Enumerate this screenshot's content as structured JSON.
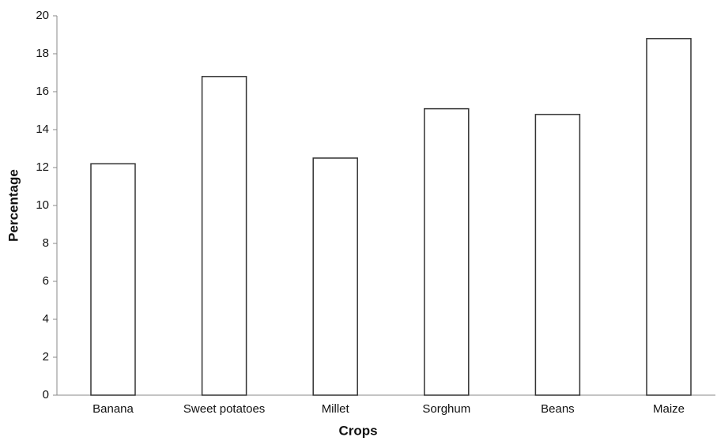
{
  "chart_data": {
    "type": "bar",
    "x_label": "Crops",
    "y_label": "Percentage",
    "categories": [
      "Banana",
      "Sweet potatoes",
      "Millet",
      "Sorghum",
      "Beans",
      "Maize"
    ],
    "values": [
      12.2,
      16.8,
      12.5,
      15.1,
      14.8,
      18.8
    ],
    "color": "#ffffff",
    "ylim": [
      0,
      20
    ],
    "yticks": [
      0,
      2,
      4,
      6,
      8,
      10,
      12,
      14,
      16,
      18,
      20
    ],
    "grid": false
  }
}
